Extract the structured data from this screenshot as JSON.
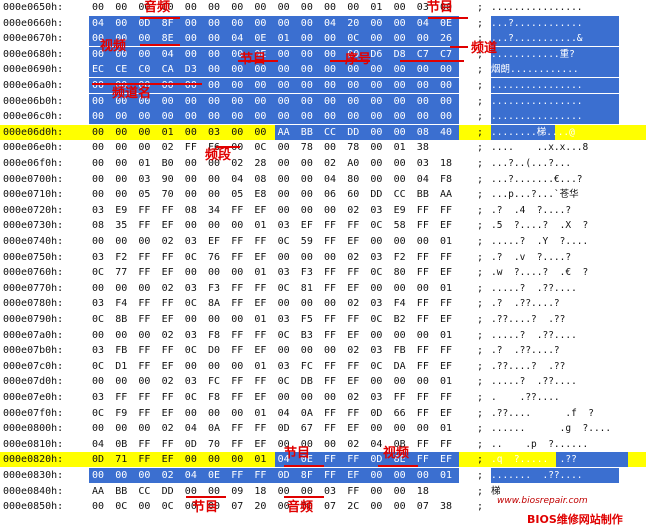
{
  "rows": [
    {
      "addr": "000e0650h:",
      "hex": [
        "00",
        "00",
        "00",
        "00",
        "00",
        "00",
        "00",
        "00",
        "00",
        "00",
        "00",
        "00",
        "01",
        "00",
        "03",
        "00"
      ],
      "ascii": "................",
      "highlight": false
    },
    {
      "addr": "000e0660h:",
      "hex": [
        "04",
        "00",
        "0D",
        "8F",
        "00",
        "00",
        "00",
        "00",
        "00",
        "00",
        "04",
        "20",
        "00",
        "00",
        "04",
        "0E"
      ],
      "ascii": "...?............",
      "highlight": false
    },
    {
      "addr": "000e0670h:",
      "hex": [
        "00",
        "00",
        "00",
        "8E",
        "00",
        "00",
        "04",
        "0E",
        "01",
        "00",
        "00",
        "0C",
        "00",
        "00",
        "00",
        "26"
      ],
      "ascii": "...?...........&",
      "highlight": false
    },
    {
      "addr": "000e0680h:",
      "hex": [
        "00",
        "00",
        "00",
        "04",
        "00",
        "00",
        "00",
        "0E",
        "00",
        "00",
        "00",
        "00",
        "D6",
        "D8",
        "C7",
        "C7"
      ],
      "ascii": "............重?",
      "highlight": false
    },
    {
      "addr": "000e0690h:",
      "hex": [
        "EC",
        "CE",
        "C0",
        "CA",
        "D3",
        "00",
        "00",
        "00",
        "00",
        "00",
        "00",
        "00",
        "00",
        "00",
        "00",
        "00"
      ],
      "ascii": "烟朗............",
      "highlight": false
    },
    {
      "addr": "000e06a0h:",
      "hex": [
        "00",
        "00",
        "00",
        "00",
        "00",
        "00",
        "00",
        "00",
        "00",
        "00",
        "00",
        "00",
        "00",
        "00",
        "00",
        "00"
      ],
      "ascii": "................",
      "highlight": false
    },
    {
      "addr": "000e06b0h:",
      "hex": [
        "00",
        "00",
        "00",
        "00",
        "00",
        "00",
        "00",
        "00",
        "00",
        "00",
        "00",
        "00",
        "00",
        "00",
        "00",
        "00"
      ],
      "ascii": "................",
      "highlight": false
    },
    {
      "addr": "000e06c0h:",
      "hex": [
        "00",
        "00",
        "00",
        "00",
        "00",
        "00",
        "00",
        "00",
        "00",
        "00",
        "00",
        "00",
        "00",
        "00",
        "00",
        "00"
      ],
      "ascii": "................",
      "highlight": false
    },
    {
      "addr": "000e06d0h:",
      "hex": [
        "00",
        "00",
        "00",
        "01",
        "00",
        "03",
        "00",
        "00",
        "AA",
        "BB",
        "CC",
        "DD",
        "00",
        "00",
        "08",
        "40"
      ],
      "ascii": "........梯....@",
      "highlight": true
    },
    {
      "addr": "000e06e0h:",
      "hex": [
        "00",
        "00",
        "00",
        "02",
        "FF",
        "F6",
        "00",
        "0C",
        "00",
        "78",
        "00",
        "78",
        "00",
        "01",
        "38",
        "",
        ""
      ],
      "ascii": "....    ..x.x...8",
      "highlight": false
    },
    {
      "addr": "000e06f0h:",
      "hex": [
        "00",
        "00",
        "01",
        "B0",
        "00",
        "00",
        "02",
        "28",
        "00",
        "00",
        "02",
        "A0",
        "00",
        "00",
        "03",
        "18"
      ],
      "ascii": "...?..(...?...",
      "highlight": false
    },
    {
      "addr": "000e0700h:",
      "hex": [
        "00",
        "00",
        "03",
        "90",
        "00",
        "00",
        "04",
        "08",
        "00",
        "00",
        "04",
        "80",
        "00",
        "00",
        "04",
        "F8"
      ],
      "ascii": "...?.......€...?",
      "highlight": false
    },
    {
      "addr": "000e0710h:",
      "hex": [
        "00",
        "00",
        "05",
        "70",
        "00",
        "00",
        "05",
        "E8",
        "00",
        "00",
        "06",
        "60",
        "DD",
        "CC",
        "BB",
        "AA"
      ],
      "ascii": "...p...?...`苍华",
      "highlight": false
    },
    {
      "addr": "000e0720h:",
      "hex": [
        "03",
        "E9",
        "FF",
        "FF",
        "08",
        "34",
        "FF",
        "EF",
        "00",
        "00",
        "00",
        "02",
        "03",
        "E9",
        "FF",
        "FF"
      ],
      "ascii": ".?  .4  ?....?",
      "highlight": false
    },
    {
      "addr": "000e0730h:",
      "hex": [
        "08",
        "35",
        "FF",
        "EF",
        "00",
        "00",
        "00",
        "01",
        "03",
        "EF",
        "FF",
        "FF",
        "0C",
        "58",
        "FF",
        "EF"
      ],
      "ascii": ".5  ?....?  .X  ?",
      "highlight": false
    },
    {
      "addr": "000e0740h:",
      "hex": [
        "00",
        "00",
        "00",
        "02",
        "03",
        "EF",
        "FF",
        "FF",
        "0C",
        "59",
        "FF",
        "EF",
        "00",
        "00",
        "00",
        "01"
      ],
      "ascii": ".....?  .Y  ?....",
      "highlight": false
    },
    {
      "addr": "000e0750h:",
      "hex": [
        "03",
        "F2",
        "FF",
        "FF",
        "0C",
        "76",
        "FF",
        "EF",
        "00",
        "00",
        "00",
        "02",
        "03",
        "F2",
        "FF",
        "FF"
      ],
      "ascii": ".?  .v  ?....?",
      "highlight": false
    },
    {
      "addr": "000e0760h:",
      "hex": [
        "0C",
        "77",
        "FF",
        "EF",
        "00",
        "00",
        "00",
        "01",
        "03",
        "F3",
        "FF",
        "FF",
        "0C",
        "80",
        "FF",
        "EF"
      ],
      "ascii": ".w  ?....?  .€  ?",
      "highlight": false
    },
    {
      "addr": "000e0770h:",
      "hex": [
        "00",
        "00",
        "00",
        "02",
        "03",
        "F3",
        "FF",
        "FF",
        "0C",
        "81",
        "FF",
        "EF",
        "00",
        "00",
        "00",
        "01"
      ],
      "ascii": ".....?  .??....",
      "highlight": false
    },
    {
      "addr": "000e0780h:",
      "hex": [
        "03",
        "F4",
        "FF",
        "FF",
        "0C",
        "8A",
        "FF",
        "EF",
        "00",
        "00",
        "00",
        "02",
        "03",
        "F4",
        "FF",
        "FF"
      ],
      "ascii": ".?  .??....?",
      "highlight": false
    },
    {
      "addr": "000e0790h:",
      "hex": [
        "0C",
        "8B",
        "FF",
        "EF",
        "00",
        "00",
        "00",
        "01",
        "03",
        "F5",
        "FF",
        "FF",
        "0C",
        "B2",
        "FF",
        "EF"
      ],
      "ascii": ".??....?  .??",
      "highlight": false
    },
    {
      "addr": "000e07a0h:",
      "hex": [
        "00",
        "00",
        "00",
        "02",
        "03",
        "F8",
        "FF",
        "FF",
        "0C",
        "B3",
        "FF",
        "EF",
        "00",
        "00",
        "00",
        "01"
      ],
      "ascii": ".....?  .??....",
      "highlight": false
    },
    {
      "addr": "000e07b0h:",
      "hex": [
        "03",
        "FB",
        "FF",
        "FF",
        "0C",
        "D0",
        "FF",
        "EF",
        "00",
        "00",
        "00",
        "02",
        "03",
        "FB",
        "FF",
        "FF"
      ],
      "ascii": ".?  .??....?",
      "highlight": false
    },
    {
      "addr": "000e07c0h:",
      "hex": [
        "0C",
        "D1",
        "FF",
        "EF",
        "00",
        "00",
        "00",
        "01",
        "03",
        "FC",
        "FF",
        "FF",
        "0C",
        "DA",
        "FF",
        "EF"
      ],
      "ascii": ".??....?  .??",
      "highlight": false
    },
    {
      "addr": "000e07d0h:",
      "hex": [
        "00",
        "00",
        "00",
        "02",
        "03",
        "FC",
        "FF",
        "FF",
        "0C",
        "DB",
        "FF",
        "EF",
        "00",
        "00",
        "00",
        "01"
      ],
      "ascii": ".....?  .??....",
      "highlight": false
    },
    {
      "addr": "000e07e0h:",
      "hex": [
        "03",
        "FF",
        "FF",
        "FF",
        "0C",
        "F8",
        "FF",
        "EF",
        "00",
        "00",
        "00",
        "02",
        "03",
        "FF",
        "FF",
        "FF"
      ],
      "ascii": ".    .??....",
      "highlight": false
    },
    {
      "addr": "000e07f0h:",
      "hex": [
        "0C",
        "F9",
        "FF",
        "EF",
        "00",
        "00",
        "00",
        "01",
        "04",
        "0A",
        "FF",
        "FF",
        "0D",
        "66",
        "FF",
        "EF"
      ],
      "ascii": ".??....      .f  ?",
      "highlight": false
    },
    {
      "addr": "000e0800h:",
      "hex": [
        "00",
        "00",
        "00",
        "02",
        "04",
        "0A",
        "FF",
        "FF",
        "0D",
        "67",
        "FF",
        "EF",
        "00",
        "00",
        "00",
        "01"
      ],
      "ascii": "......      .g  ?....",
      "highlight": false
    },
    {
      "addr": "000e0810h:",
      "hex": [
        "04",
        "0B",
        "FF",
        "FF",
        "0D",
        "70",
        "FF",
        "EF",
        "00",
        "00",
        "00",
        "02",
        "04",
        "0B",
        "FF",
        "FF"
      ],
      "ascii": "..    .p  ?......",
      "highlight": false
    },
    {
      "addr": "000e0820h:",
      "hex": [
        "0D",
        "71",
        "FF",
        "EF",
        "00",
        "00",
        "00",
        "01",
        "04",
        "0E",
        "FF",
        "FF",
        "0D",
        "8E",
        "FF",
        "EF"
      ],
      "ascii": ".q  ?.....  .??",
      "highlight": true
    },
    {
      "addr": "000e0830h:",
      "hex": [
        "00",
        "00",
        "00",
        "02",
        "04",
        "0E",
        "FF",
        "FF",
        "0D",
        "8F",
        "FF",
        "EF",
        "00",
        "00",
        "00",
        "01"
      ],
      "ascii": ".......  .??....",
      "highlight": false
    },
    {
      "addr": "000e0840h:",
      "hex": [
        "AA",
        "BB",
        "CC",
        "DD",
        "00",
        "00",
        "09",
        "18",
        "00",
        "00",
        "03",
        "FF",
        "00",
        "00",
        "18",
        "",
        ""
      ],
      "ascii": "梯",
      "highlight": false
    },
    {
      "addr": "000e0850h:",
      "hex": [
        "00",
        "0C",
        "00",
        "0C",
        "00",
        "00",
        "07",
        "20",
        "00",
        "00",
        "07",
        "2C",
        "00",
        "00",
        "07",
        "38"
      ],
      "ascii": "",
      "highlight": false
    }
  ],
  "annotations": {
    "audio": "音频",
    "video": "视频",
    "program": "节目",
    "channel": "频道",
    "serial": "序号",
    "channel_name": "频道名",
    "band": "频段"
  },
  "watermark": {
    "url": "www.biosrepair.com",
    "text": "BIOS维修网站制作"
  },
  "colors": {
    "selection": "#3b6fd0",
    "highlight": "#ffff00",
    "annotation": "#e00000"
  }
}
